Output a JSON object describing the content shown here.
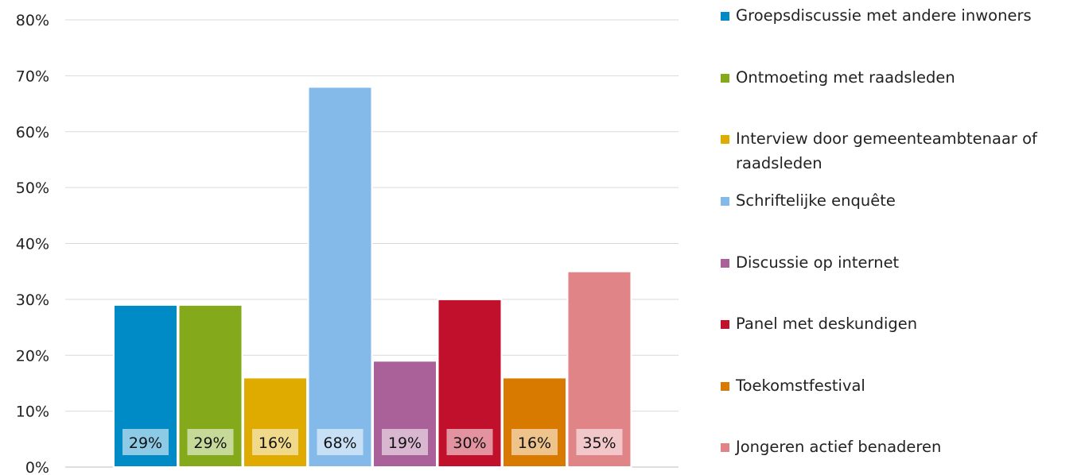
{
  "chart_data": {
    "type": "bar",
    "title": "",
    "xlabel": "",
    "ylabel": "",
    "ylim": [
      0,
      80
    ],
    "y_ticks": [
      "0%",
      "10%",
      "20%",
      "30%",
      "40%",
      "50%",
      "60%",
      "70%",
      "80%"
    ],
    "grid": true,
    "legend_position": "right",
    "categories": [
      "Groepsdiscussie met andere inwoners",
      "Ontmoeting met raadsleden",
      "Interview door gemeenteambtenaar of raadsleden",
      "Schriftelijke enquête",
      "Discussie op internet",
      "Panel met deskundigen",
      "Toekomstfestival",
      "Jongeren actief benaderen"
    ],
    "values": [
      29,
      29,
      16,
      68,
      19,
      30,
      16,
      35
    ],
    "data_labels": [
      "29%",
      "29%",
      "16%",
      "68%",
      "19%",
      "30%",
      "16%",
      "35%"
    ],
    "colors": [
      "#008ac6",
      "#84aa1b",
      "#e0ab00",
      "#84baea",
      "#aa6099",
      "#c0102b",
      "#d97a00",
      "#e08488"
    ]
  }
}
